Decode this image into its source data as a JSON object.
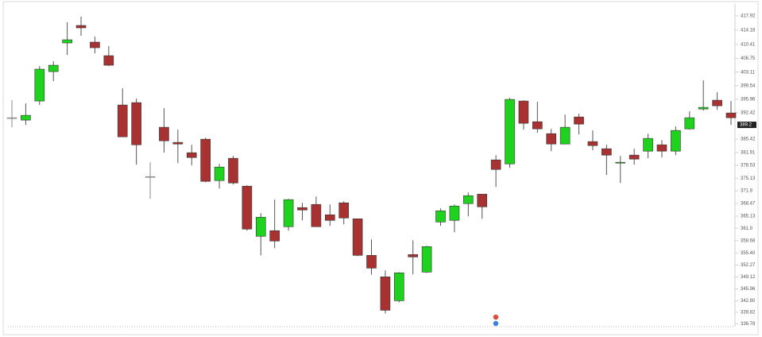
{
  "chart_data": {
    "type": "candlestick",
    "ylim": [
      336.0,
      421.06
    ],
    "yticks": [
      417.92,
      414.18,
      410.41,
      406.75,
      403.11,
      399.54,
      395.96,
      392.42,
      385.42,
      381.91,
      378.53,
      375.13,
      371.8,
      368.47,
      365.13,
      361.9,
      358.68,
      {
        "value": 355.4,
        "label": "355.40"
      },
      352.27,
      349.12,
      345.96,
      {
        "value": 342.8,
        "label": "342.80"
      },
      339.82,
      336.78
    ],
    "last_price": 389.2,
    "up_color": "#1ed21e",
    "down_color": "#a83232",
    "flat_color": "#8a8a8a",
    "open": [
      391.07,
      390.45,
      395.48,
      403.24,
      410.79,
      415.4,
      411.0,
      407.43,
      394.43,
      395.06,
      375.56,
      388.56,
      384.57,
      381.85,
      385.41,
      374.51,
      380.38,
      373.04,
      359.83,
      361.3,
      362.35,
      367.38,
      368.22,
      365.49,
      368.64,
      364.44,
      354.8,
      349.13,
      342.84,
      355.01,
      350.39,
      363.6,
      364.02,
      368.43,
      370.94,
      379.96,
      378.91,
      395.48,
      390.03,
      386.88,
      384.15,
      391.28,
      384.78,
      382.9,
      379.12,
      381.22,
      382.27,
      383.94,
      382.27,
      388.14,
      393.38,
      395.69,
      392.33
    ],
    "high": [
      395.69,
      394.85,
      404.7,
      405.96,
      416.24,
      417.71,
      412.46,
      409.95,
      398.83,
      396.11,
      379.33,
      393.59,
      387.93,
      383.94,
      385.83,
      378.91,
      381.01,
      373.25,
      365.91,
      369.48,
      369.68,
      368.64,
      370.31,
      368.22,
      369.06,
      364.44,
      358.99,
      350.81,
      350.39,
      358.78,
      357.31,
      367.17,
      368.22,
      371.36,
      370.94,
      381.22,
      396.32,
      395.69,
      395.27,
      388.14,
      391.91,
      392.12,
      387.72,
      383.94,
      381.01,
      382.9,
      386.88,
      385.2,
      388.77,
      392.75,
      400.93,
      397.78,
      395.48
    ],
    "low": [
      388.56,
      389.19,
      394.43,
      400.72,
      407.64,
      412.67,
      408.06,
      404.7,
      386.04,
      378.7,
      369.68,
      381.85,
      379.12,
      378.49,
      374.09,
      372.41,
      373.46,
      361.3,
      354.8,
      356.68,
      361.3,
      364.02,
      362.35,
      362.56,
      362.97,
      354.59,
      349.76,
      339.49,
      342.42,
      349.76,
      350.18,
      362.56,
      360.88,
      365.07,
      364.44,
      372.83,
      377.86,
      387.93,
      387.09,
      382.27,
      384.15,
      386.67,
      382.48,
      375.98,
      373.88,
      378.7,
      380.38,
      380.59,
      381.22,
      387.93,
      392.96,
      393.17,
      389.19
    ],
    "close": [
      391.07,
      391.7,
      403.87,
      404.91,
      411.62,
      414.77,
      409.53,
      404.91,
      386.04,
      383.94,
      375.56,
      384.99,
      384.15,
      380.59,
      374.3,
      378.07,
      373.88,
      361.72,
      364.86,
      358.57,
      369.48,
      366.75,
      362.35,
      364.02,
      364.65,
      354.8,
      351.44,
      340.33,
      350.18,
      354.38,
      357.1,
      366.54,
      367.8,
      370.52,
      367.59,
      377.44,
      395.9,
      389.61,
      388.14,
      384.15,
      388.56,
      389.4,
      383.73,
      381.22,
      379.33,
      380.17,
      385.62,
      382.27,
      387.72,
      391.07,
      393.8,
      394.22,
      391.07
    ]
  }
}
